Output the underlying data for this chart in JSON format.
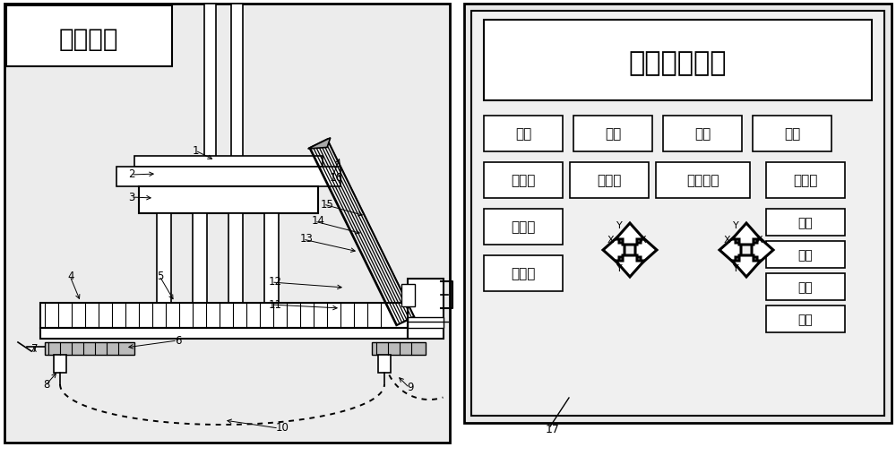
{
  "left_panel_title": "试验腔体",
  "right_panel_title": "参数显示面板",
  "row1_buttons": [
    "自动",
    "手动",
    "程序",
    "还原"
  ],
  "row2_buttons": [
    "进给增",
    "进给减",
    "设置原点",
    "回原点"
  ],
  "row3_left": [
    "倍率增",
    "倍率减"
  ],
  "right_col_buttons": [
    "确认",
    "启动",
    "暂停",
    "关闭"
  ],
  "arrow_labels_left": [
    "X",
    "Y"
  ],
  "arrow_labels_right": [
    "X",
    "Y"
  ]
}
